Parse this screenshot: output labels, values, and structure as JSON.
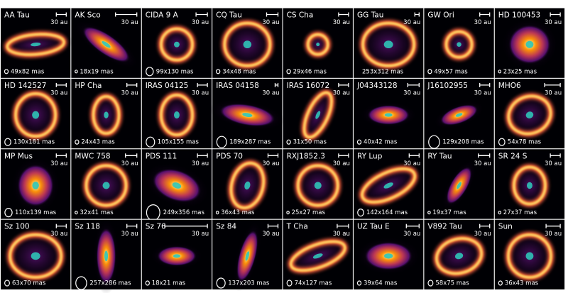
{
  "panels": [
    {
      "name": "AA Tau",
      "scale": "30 au",
      "beam": "49x82 mas"
    },
    {
      "name": "AK Sco",
      "scale": "30 au",
      "beam": "18x19 mas"
    },
    {
      "name": "CIDA 9 A",
      "scale": "30 au",
      "beam": "99x130 mas"
    },
    {
      "name": "CQ Tau",
      "scale": "30 au",
      "beam": "34x48 mas"
    },
    {
      "name": "CS Cha",
      "scale": "30 au",
      "beam": "29x46 mas"
    },
    {
      "name": "GG Tau",
      "scale": "30 au",
      "beam": "253x312 mas"
    },
    {
      "name": "GW Ori",
      "scale": "30 au",
      "beam": "49x57 mas"
    },
    {
      "name": "HD 100453",
      "scale": "30 au",
      "beam": "23x25 mas"
    },
    {
      "name": "HD 142527",
      "scale": "30 au",
      "beam": "130x181 mas"
    },
    {
      "name": "HP Cha",
      "scale": "30 au",
      "beam": "24x43 mas"
    },
    {
      "name": "IRAS 04125",
      "scale": "30 au",
      "beam": "105x155 mas"
    },
    {
      "name": "IRAS 04158",
      "scale": "30 au",
      "beam": "189x287 mas"
    },
    {
      "name": "IRAS 16072",
      "scale": "30 au",
      "beam": "31x50 mas"
    },
    {
      "name": "J04343128",
      "scale": "30 au",
      "beam": "40x42 mas"
    },
    {
      "name": "J16102955",
      "scale": "30 au",
      "beam": "129x208 mas"
    },
    {
      "name": "MHO6",
      "scale": "30 au",
      "beam": "54x78 mas"
    },
    {
      "name": "MP Mus",
      "scale": "30 au",
      "beam": "110x139 mas"
    },
    {
      "name": "MWC 758",
      "scale": "30 au",
      "beam": "32x41 mas"
    },
    {
      "name": "PDS 111",
      "scale": "30 au",
      "beam": "249x356 mas"
    },
    {
      "name": "PDS 70",
      "scale": "30 au",
      "beam": "36x43 mas"
    },
    {
      "name": "RXJ1852.3",
      "scale": "30 au",
      "beam": "25x27 mas"
    },
    {
      "name": "RY Lup",
      "scale": "30 au",
      "beam": "142x164 mas"
    },
    {
      "name": "RY Tau",
      "scale": "30 au",
      "beam": "19x37 mas"
    },
    {
      "name": "SR 24 S",
      "scale": "30 au",
      "beam": "27x37 mas"
    },
    {
      "name": "Sz 100",
      "scale": "30 au",
      "beam": "63x70 mas"
    },
    {
      "name": "Sz 118",
      "scale": "30 au",
      "beam": "257x286 mas"
    },
    {
      "name": "Sz 76",
      "scale": "30 au",
      "beam": "18x21 mas"
    },
    {
      "name": "Sz 84",
      "scale": "30 au",
      "beam": "137x203 mas"
    },
    {
      "name": "T Cha",
      "scale": "30 au",
      "beam": "74x127 mas"
    },
    {
      "name": "UZ Tau E",
      "scale": "30 au",
      "beam": "39x64 mas"
    },
    {
      "name": "V892 Tau",
      "scale": "30 au",
      "beam": "58x75 mas"
    },
    {
      "name": "Sun",
      "scale": "30 au",
      "beam": "36x43 mas"
    }
  ]
}
